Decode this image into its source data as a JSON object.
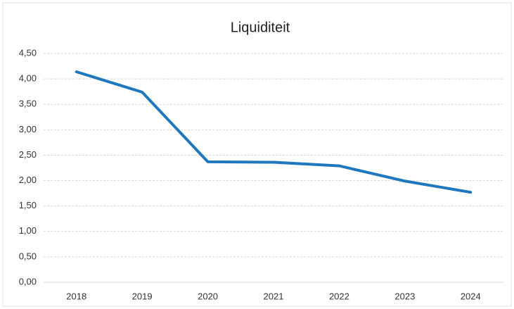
{
  "chart_data": {
    "type": "line",
    "title": "Liquiditeit",
    "categories": [
      "2018",
      "2019",
      "2020",
      "2021",
      "2022",
      "2023",
      "2024"
    ],
    "series": [
      {
        "name": "Liquiditeit",
        "color": "#1f77bd",
        "values": [
          4.14,
          3.74,
          2.37,
          2.36,
          2.29,
          1.99,
          1.77
        ]
      }
    ],
    "ylim": [
      0,
      4.5
    ],
    "yticks": [
      {
        "value": 0,
        "label": "0,00"
      },
      {
        "value": 0.5,
        "label": "0,50"
      },
      {
        "value": 1,
        "label": "1,00"
      },
      {
        "value": 1.5,
        "label": "1,50"
      },
      {
        "value": 2,
        "label": "2,00"
      },
      {
        "value": 2.5,
        "label": "2,50"
      },
      {
        "value": 3,
        "label": "3,00"
      },
      {
        "value": 3.5,
        "label": "3,50"
      },
      {
        "value": 4,
        "label": "4,00"
      },
      {
        "value": 4.5,
        "label": "4,50"
      }
    ],
    "grid": true
  }
}
